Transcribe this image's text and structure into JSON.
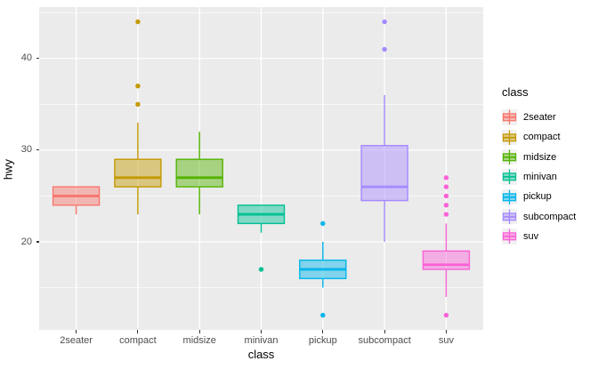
{
  "figure": {
    "bg": "#FFFFFF",
    "panel_bg": "#EBEBEB",
    "grid_color": "#FFFFFF",
    "tick_mark_color": "#333333",
    "tick_label_color": "#4D4D4D",
    "axis_title_color": "#000000",
    "legend_key_bg": "#F2F2F2"
  },
  "chart_data": {
    "type": "boxplot",
    "title": "",
    "xlabel": "class",
    "ylabel": "hwy",
    "categories": [
      "2seater",
      "compact",
      "midsize",
      "minivan",
      "pickup",
      "subcompact",
      "suv"
    ],
    "y_axis": {
      "major_ticks": [
        20,
        30,
        40
      ],
      "minor_ticks": [
        15,
        25,
        35,
        45
      ],
      "ylim": [
        10.4,
        45.6
      ]
    },
    "grid": true,
    "fill_alpha": 0.45,
    "boxes": [
      {
        "category": "2seater",
        "color": "#F8766D",
        "whisker_low": 23,
        "q1": 24,
        "median": 25,
        "q3": 26,
        "whisker_high": 26,
        "outliers": []
      },
      {
        "category": "compact",
        "color": "#C49A00",
        "whisker_low": 23,
        "q1": 26,
        "median": 27,
        "q3": 29,
        "whisker_high": 33,
        "outliers": [
          35,
          37,
          44
        ]
      },
      {
        "category": "midsize",
        "color": "#53B400",
        "whisker_low": 23,
        "q1": 26,
        "median": 27,
        "q3": 29,
        "whisker_high": 32,
        "outliers": []
      },
      {
        "category": "minivan",
        "color": "#00C094",
        "whisker_low": 21,
        "q1": 22,
        "median": 23,
        "q3": 24,
        "whisker_high": 24,
        "outliers": [
          17
        ]
      },
      {
        "category": "pickup",
        "color": "#00B6EB",
        "whisker_low": 15,
        "q1": 16,
        "median": 17,
        "q3": 18,
        "whisker_high": 20,
        "outliers": [
          12,
          22
        ]
      },
      {
        "category": "subcompact",
        "color": "#A58AFF",
        "whisker_low": 20,
        "q1": 24.5,
        "median": 26,
        "q3": 30.5,
        "whisker_high": 36,
        "outliers": [
          41,
          44
        ]
      },
      {
        "category": "suv",
        "color": "#FB61D7",
        "whisker_low": 14,
        "q1": 17,
        "median": 17.5,
        "q3": 19,
        "whisker_high": 22,
        "outliers": [
          12,
          23,
          24,
          25,
          26,
          27
        ]
      }
    ],
    "legend": {
      "title": "class",
      "position": "right",
      "entries": [
        {
          "label": "2seater",
          "color": "#F8766D"
        },
        {
          "label": "compact",
          "color": "#C49A00"
        },
        {
          "label": "midsize",
          "color": "#53B400"
        },
        {
          "label": "minivan",
          "color": "#00C094"
        },
        {
          "label": "pickup",
          "color": "#00B6EB"
        },
        {
          "label": "subcompact",
          "color": "#A58AFF"
        },
        {
          "label": "suv",
          "color": "#FB61D7"
        }
      ]
    }
  }
}
